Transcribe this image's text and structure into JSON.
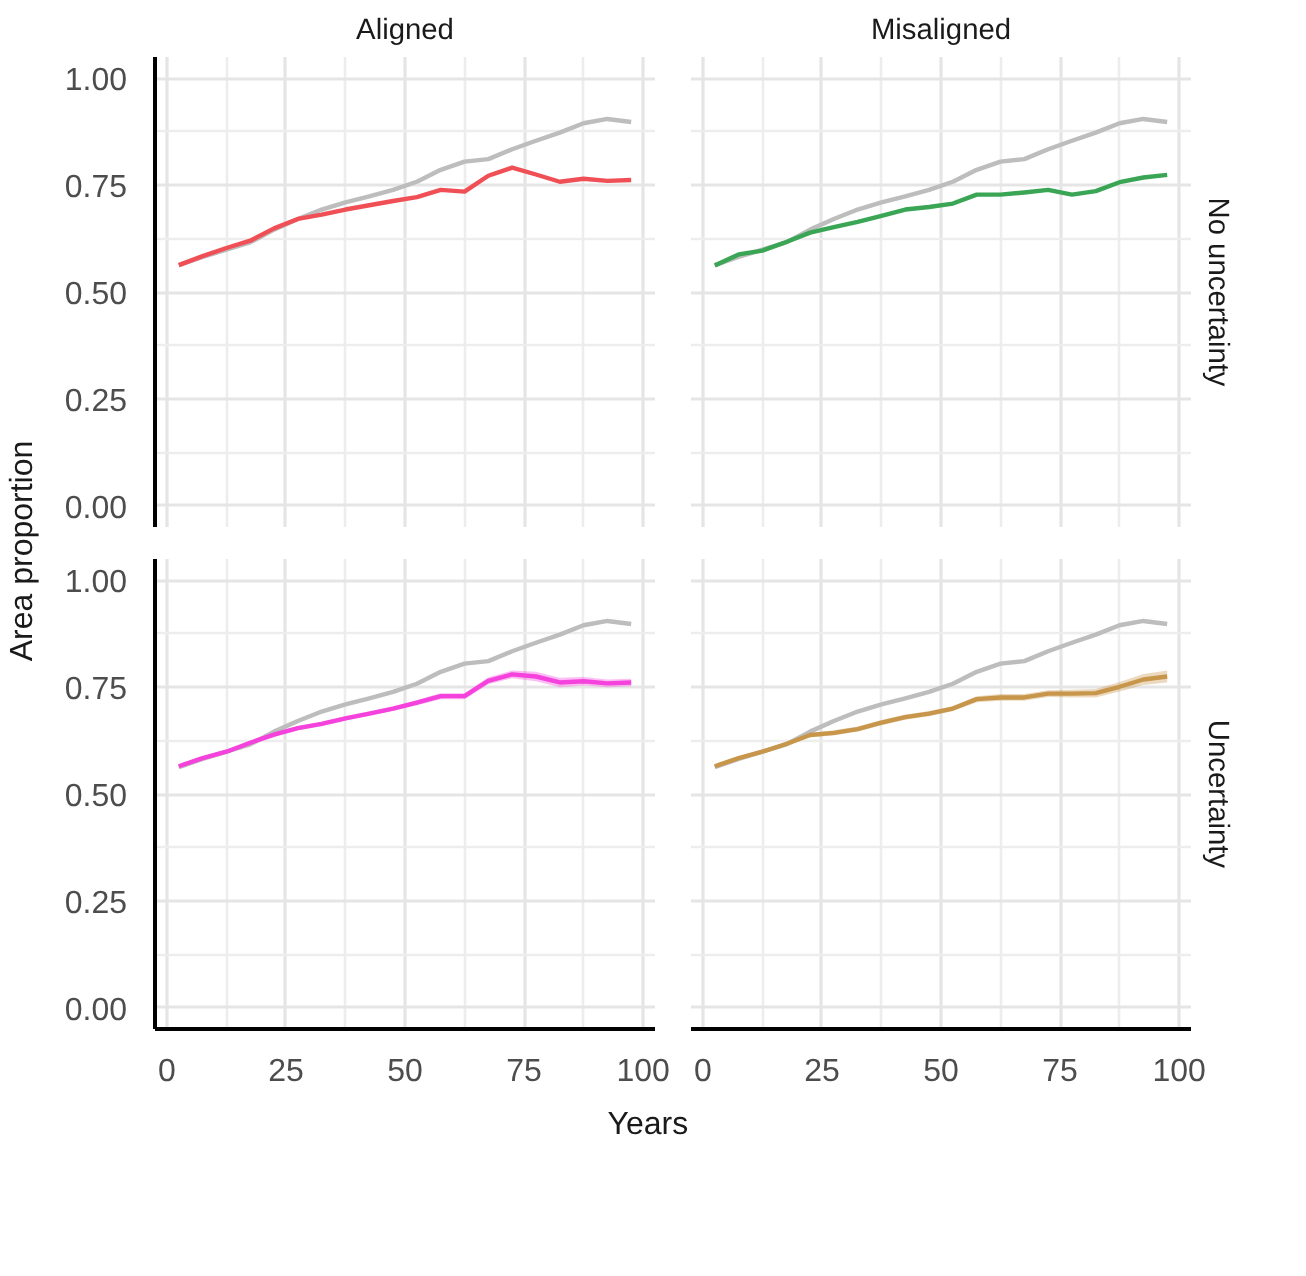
{
  "chart_data": [
    {
      "type": "line",
      "title": "Aligned",
      "ylabel": "Area proportion",
      "x": [
        2.5,
        7.5,
        12.5,
        17.5,
        22.5,
        27.5,
        32.5,
        37.5,
        42.5,
        47.5,
        52.5,
        57.5,
        62.5,
        67.5,
        72.5,
        77.5,
        82.5,
        87.5,
        92.5,
        97.5
      ],
      "xlim": [
        -2.5,
        102.5
      ],
      "ylim": [
        -0.05,
        1.05
      ],
      "xticks": [
        0,
        25,
        50,
        75,
        100
      ],
      "yticks": [
        {
          "value": 0,
          "label": "0.00"
        },
        {
          "value": 0.25,
          "label": "0.25"
        },
        {
          "value": 0.5,
          "label": "0.50"
        },
        {
          "value": 0.75,
          "label": "0.75"
        },
        {
          "value": 1,
          "label": "1.00"
        }
      ],
      "grid": true,
      "tick_labels": "y",
      "series": [
        {
          "color": "#bdbdbd",
          "values": [
            0.563,
            0.582,
            0.599,
            0.616,
            0.646,
            0.671,
            0.693,
            0.71,
            0.724,
            0.739,
            0.758,
            0.786,
            0.805,
            0.811,
            0.834,
            0.854,
            0.873,
            0.895,
            0.905,
            0.898
          ]
        },
        {
          "color": "#ef4f55",
          "values": [
            0.563,
            0.584,
            0.603,
            0.62,
            0.649,
            0.671,
            0.681,
            0.693,
            0.703,
            0.713,
            0.722,
            0.739,
            0.735,
            0.772,
            0.791,
            0.775,
            0.758,
            0.765,
            0.76,
            0.762
          ]
        }
      ]
    },
    {
      "type": "line",
      "title": "Misaligned",
      "annotations": [
        "No uncertainty"
      ],
      "x": [
        2.5,
        7.5,
        12.5,
        17.5,
        22.5,
        27.5,
        32.5,
        37.5,
        42.5,
        47.5,
        52.5,
        57.5,
        62.5,
        67.5,
        72.5,
        77.5,
        82.5,
        87.5,
        92.5,
        97.5
      ],
      "xlim": [
        -2.5,
        102.5
      ],
      "ylim": [
        -0.05,
        1.05
      ],
      "xticks": [
        0,
        25,
        50,
        75,
        100
      ],
      "yticks": [
        0,
        0.25,
        0.5,
        0.75,
        1
      ],
      "grid": true,
      "tick_labels": false,
      "series": [
        {
          "color": "#bdbdbd",
          "values": [
            0.563,
            0.582,
            0.599,
            0.616,
            0.646,
            0.671,
            0.693,
            0.71,
            0.724,
            0.739,
            0.758,
            0.786,
            0.805,
            0.811,
            0.834,
            0.854,
            0.873,
            0.895,
            0.905,
            0.898
          ]
        },
        {
          "color": "#3aa655",
          "values": [
            0.562,
            0.588,
            0.597,
            0.617,
            0.639,
            0.652,
            0.664,
            0.678,
            0.693,
            0.699,
            0.707,
            0.728,
            0.728,
            0.733,
            0.739,
            0.728,
            0.736,
            0.757,
            0.768,
            0.774
          ]
        }
      ]
    },
    {
      "type": "line",
      "xlabel": "Years",
      "x": [
        2.5,
        7.5,
        12.5,
        17.5,
        22.5,
        27.5,
        32.5,
        37.5,
        42.5,
        47.5,
        52.5,
        57.5,
        62.5,
        67.5,
        72.5,
        77.5,
        82.5,
        87.5,
        92.5,
        97.5
      ],
      "xlim": [
        -2.5,
        102.5
      ],
      "ylim": [
        -0.05,
        1.05
      ],
      "xticks": [
        0,
        25,
        50,
        75,
        100
      ],
      "yticks": [
        {
          "value": 0,
          "label": "0.00"
        },
        {
          "value": 0.25,
          "label": "0.25"
        },
        {
          "value": 0.5,
          "label": "0.50"
        },
        {
          "value": 0.75,
          "label": "0.75"
        },
        {
          "value": 1,
          "label": "1.00"
        }
      ],
      "grid": true,
      "series": [
        {
          "color": "#bdbdbd",
          "values": [
            0.563,
            0.582,
            0.599,
            0.616,
            0.646,
            0.671,
            0.693,
            0.71,
            0.724,
            0.739,
            0.758,
            0.786,
            0.805,
            0.811,
            0.834,
            0.854,
            0.873,
            0.895,
            0.905,
            0.898
          ]
        },
        {
          "color": "#f542dc",
          "values": [
            0.565,
            0.584,
            0.599,
            0.62,
            0.639,
            0.654,
            0.664,
            0.677,
            0.688,
            0.7,
            0.714,
            0.729,
            0.729,
            0.765,
            0.78,
            0.775,
            0.761,
            0.764,
            0.759,
            0.761
          ],
          "lower": [
            0.562,
            0.58,
            0.595,
            0.615,
            0.634,
            0.649,
            0.659,
            0.672,
            0.683,
            0.695,
            0.708,
            0.722,
            0.722,
            0.757,
            0.771,
            0.764,
            0.75,
            0.754,
            0.75,
            0.752
          ],
          "upper": [
            0.568,
            0.588,
            0.603,
            0.625,
            0.644,
            0.659,
            0.669,
            0.682,
            0.693,
            0.705,
            0.72,
            0.736,
            0.736,
            0.773,
            0.789,
            0.786,
            0.772,
            0.774,
            0.768,
            0.77
          ]
        }
      ]
    },
    {
      "type": "line",
      "annotations": [
        "Uncertainty"
      ],
      "x": [
        2.5,
        7.5,
        12.5,
        17.5,
        22.5,
        27.5,
        32.5,
        37.5,
        42.5,
        47.5,
        52.5,
        57.5,
        62.5,
        67.5,
        72.5,
        77.5,
        82.5,
        87.5,
        92.5,
        97.5
      ],
      "xlim": [
        -2.5,
        102.5
      ],
      "ylim": [
        -0.05,
        1.05
      ],
      "xticks": [
        0,
        25,
        50,
        75,
        100
      ],
      "yticks": [
        0,
        0.25,
        0.5,
        0.75,
        1
      ],
      "grid": true,
      "tick_labels": "x",
      "series": [
        {
          "color": "#bdbdbd",
          "values": [
            0.563,
            0.582,
            0.599,
            0.616,
            0.646,
            0.671,
            0.693,
            0.71,
            0.724,
            0.739,
            0.758,
            0.786,
            0.805,
            0.811,
            0.834,
            0.854,
            0.873,
            0.895,
            0.905,
            0.898
          ]
        },
        {
          "color": "#c8964a",
          "values": [
            0.565,
            0.584,
            0.599,
            0.617,
            0.638,
            0.643,
            0.652,
            0.667,
            0.68,
            0.688,
            0.7,
            0.722,
            0.726,
            0.726,
            0.735,
            0.735,
            0.736,
            0.751,
            0.768,
            0.775
          ],
          "lower": [
            0.562,
            0.58,
            0.595,
            0.612,
            0.633,
            0.637,
            0.646,
            0.661,
            0.674,
            0.682,
            0.694,
            0.715,
            0.718,
            0.718,
            0.727,
            0.726,
            0.726,
            0.74,
            0.755,
            0.761
          ],
          "upper": [
            0.568,
            0.588,
            0.603,
            0.622,
            0.643,
            0.649,
            0.658,
            0.673,
            0.686,
            0.694,
            0.706,
            0.729,
            0.734,
            0.734,
            0.743,
            0.744,
            0.746,
            0.762,
            0.781,
            0.789
          ]
        }
      ]
    }
  ]
}
